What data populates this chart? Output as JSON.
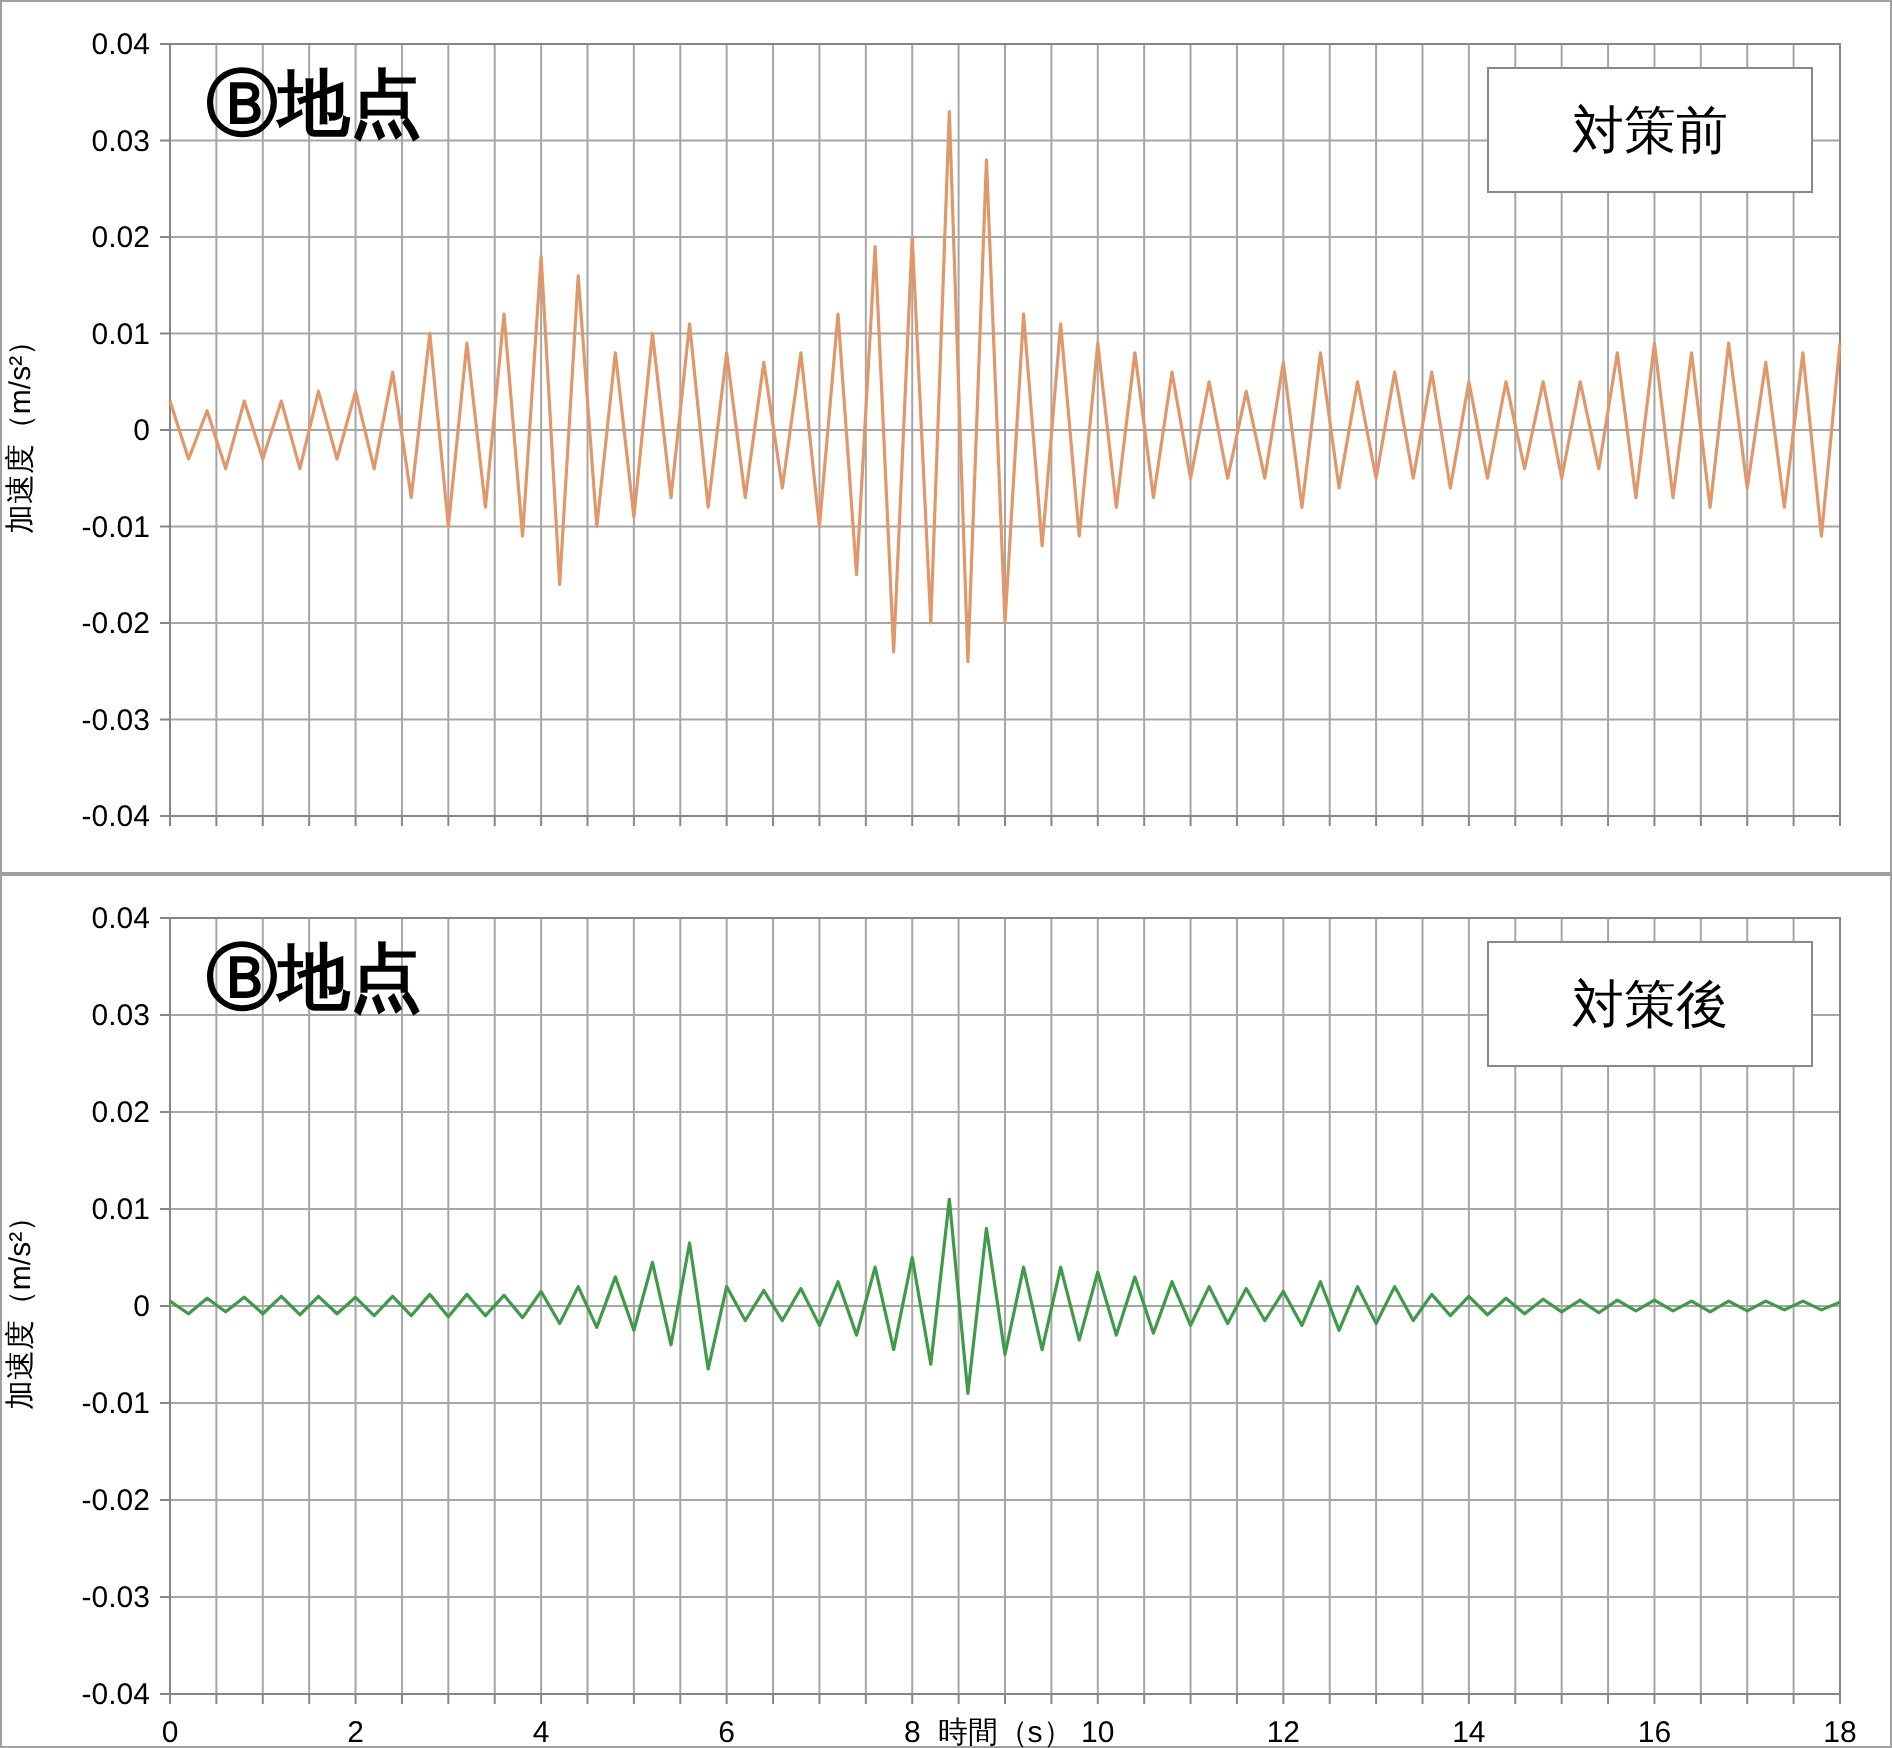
{
  "chart_data": [
    {
      "type": "line",
      "title": "Ⓑ地点",
      "ylabel": "加速度（m/s²）",
      "annotations": [
        "対策前"
      ],
      "tick_labels": "y",
      "grid": true,
      "xlim": [
        0,
        18
      ],
      "ylim": [
        -0.04,
        0.04
      ],
      "xticks": [
        {
          "value": 0,
          "label": null
        },
        {
          "value": 0.5,
          "label": null
        },
        {
          "value": 1,
          "label": null
        },
        {
          "value": 1.5,
          "label": null
        },
        {
          "value": 2,
          "label": null
        },
        {
          "value": 2.5,
          "label": null
        },
        {
          "value": 3,
          "label": null
        },
        {
          "value": 3.5,
          "label": null
        },
        {
          "value": 4,
          "label": null
        },
        {
          "value": 4.5,
          "label": null
        },
        {
          "value": 5,
          "label": null
        },
        {
          "value": 5.5,
          "label": null
        },
        {
          "value": 6,
          "label": null
        },
        {
          "value": 6.5,
          "label": null
        },
        {
          "value": 7,
          "label": null
        },
        {
          "value": 7.5,
          "label": null
        },
        {
          "value": 8,
          "label": null
        },
        {
          "value": 8.5,
          "label": null
        },
        {
          "value": 9,
          "label": null
        },
        {
          "value": 9.5,
          "label": null
        },
        {
          "value": 10,
          "label": null
        },
        {
          "value": 10.5,
          "label": null
        },
        {
          "value": 11,
          "label": null
        },
        {
          "value": 11.5,
          "label": null
        },
        {
          "value": 12,
          "label": null
        },
        {
          "value": 12.5,
          "label": null
        },
        {
          "value": 13,
          "label": null
        },
        {
          "value": 13.5,
          "label": null
        },
        {
          "value": 14,
          "label": null
        },
        {
          "value": 14.5,
          "label": null
        },
        {
          "value": 15,
          "label": null
        },
        {
          "value": 15.5,
          "label": null
        },
        {
          "value": 16,
          "label": null
        },
        {
          "value": 16.5,
          "label": null
        },
        {
          "value": 17,
          "label": null
        },
        {
          "value": 17.5,
          "label": null
        },
        {
          "value": 18,
          "label": null
        }
      ],
      "yticks": [
        -0.04,
        -0.03,
        -0.02,
        -0.01,
        0,
        0.01,
        0.02,
        0.03,
        0.04
      ],
      "x": [
        0,
        0.2,
        0.4,
        0.6,
        0.8,
        1,
        1.2,
        1.4,
        1.6,
        1.8,
        2,
        2.2,
        2.4,
        2.6,
        2.8,
        3,
        3.2,
        3.4,
        3.6,
        3.8,
        4,
        4.2,
        4.4,
        4.6,
        4.8,
        5,
        5.2,
        5.4,
        5.6,
        5.8,
        6,
        6.2,
        6.4,
        6.6,
        6.8,
        7,
        7.2,
        7.4,
        7.6,
        7.8,
        8,
        8.2,
        8.4,
        8.6,
        8.8,
        9,
        9.2,
        9.4,
        9.6,
        9.8,
        10,
        10.2,
        10.4,
        10.6,
        10.8,
        11,
        11.2,
        11.4,
        11.6,
        11.8,
        12,
        12.2,
        12.4,
        12.6,
        12.8,
        13,
        13.2,
        13.4,
        13.6,
        13.8,
        14,
        14.2,
        14.4,
        14.6,
        14.8,
        15,
        15.2,
        15.4,
        15.6,
        15.8,
        16,
        16.2,
        16.4,
        16.6,
        16.8,
        17,
        17.2,
        17.4,
        17.6,
        17.8,
        18
      ],
      "series": [
        {
          "color": "#e0986a",
          "values": [
            0.003,
            -0.003,
            0.002,
            -0.004,
            0.003,
            -0.003,
            0.003,
            -0.004,
            0.004,
            -0.003,
            0.004,
            -0.004,
            0.006,
            -0.007,
            0.01,
            -0.01,
            0.009,
            -0.008,
            0.012,
            -0.011,
            0.018,
            -0.016,
            0.016,
            -0.01,
            0.008,
            -0.009,
            0.01,
            -0.007,
            0.011,
            -0.008,
            0.008,
            -0.007,
            0.007,
            -0.006,
            0.008,
            -0.01,
            0.012,
            -0.015,
            0.019,
            -0.023,
            0.02,
            -0.02,
            0.033,
            -0.024,
            0.028,
            -0.02,
            0.012,
            -0.012,
            0.011,
            -0.011,
            0.009,
            -0.008,
            0.008,
            -0.007,
            0.006,
            -0.005,
            0.005,
            -0.005,
            0.004,
            -0.005,
            0.007,
            -0.008,
            0.008,
            -0.006,
            0.005,
            -0.005,
            0.006,
            -0.005,
            0.006,
            -0.006,
            0.005,
            -0.005,
            0.005,
            -0.004,
            0.005,
            -0.005,
            0.005,
            -0.004,
            0.008,
            -0.007,
            0.009,
            -0.007,
            0.008,
            -0.008,
            0.009,
            -0.006,
            0.007,
            -0.008,
            0.008,
            -0.011,
            0.009
          ]
        }
      ]
    },
    {
      "type": "line",
      "title": "Ⓑ地点",
      "ylabel": "加速度（m/s²）",
      "xlabel": "時間（s）",
      "annotations": [
        "対策後"
      ],
      "grid": true,
      "xlim": [
        0,
        18
      ],
      "ylim": [
        -0.04,
        0.04
      ],
      "xticks": [
        0,
        {
          "value": 0.5,
          "label": null
        },
        {
          "value": 1,
          "label": null
        },
        {
          "value": 1.5,
          "label": null
        },
        2,
        {
          "value": 2.5,
          "label": null
        },
        {
          "value": 3,
          "label": null
        },
        {
          "value": 3.5,
          "label": null
        },
        4,
        {
          "value": 4.5,
          "label": null
        },
        {
          "value": 5,
          "label": null
        },
        {
          "value": 5.5,
          "label": null
        },
        6,
        {
          "value": 6.5,
          "label": null
        },
        {
          "value": 7,
          "label": null
        },
        {
          "value": 7.5,
          "label": null
        },
        8,
        {
          "value": 8.5,
          "label": null
        },
        {
          "value": 9,
          "label": null
        },
        {
          "value": 9.5,
          "label": null
        },
        10,
        {
          "value": 10.5,
          "label": null
        },
        {
          "value": 11,
          "label": null
        },
        {
          "value": 11.5,
          "label": null
        },
        12,
        {
          "value": 12.5,
          "label": null
        },
        {
          "value": 13,
          "label": null
        },
        {
          "value": 13.5,
          "label": null
        },
        14,
        {
          "value": 14.5,
          "label": null
        },
        {
          "value": 15,
          "label": null
        },
        {
          "value": 15.5,
          "label": null
        },
        16,
        {
          "value": 16.5,
          "label": null
        },
        {
          "value": 17,
          "label": null
        },
        {
          "value": 17.5,
          "label": null
        },
        18
      ],
      "yticks": [
        -0.04,
        -0.03,
        -0.02,
        -0.01,
        0,
        0.01,
        0.02,
        0.03,
        0.04
      ],
      "x": [
        0,
        0.2,
        0.4,
        0.6,
        0.8,
        1,
        1.2,
        1.4,
        1.6,
        1.8,
        2,
        2.2,
        2.4,
        2.6,
        2.8,
        3,
        3.2,
        3.4,
        3.6,
        3.8,
        4,
        4.2,
        4.4,
        4.6,
        4.8,
        5,
        5.2,
        5.4,
        5.6,
        5.8,
        6,
        6.2,
        6.4,
        6.6,
        6.8,
        7,
        7.2,
        7.4,
        7.6,
        7.8,
        8,
        8.2,
        8.4,
        8.6,
        8.8,
        9,
        9.2,
        9.4,
        9.6,
        9.8,
        10,
        10.2,
        10.4,
        10.6,
        10.8,
        11,
        11.2,
        11.4,
        11.6,
        11.8,
        12,
        12.2,
        12.4,
        12.6,
        12.8,
        13,
        13.2,
        13.4,
        13.6,
        13.8,
        14,
        14.2,
        14.4,
        14.6,
        14.8,
        15,
        15.2,
        15.4,
        15.6,
        15.8,
        16,
        16.2,
        16.4,
        16.6,
        16.8,
        17,
        17.2,
        17.4,
        17.6,
        17.8,
        18
      ],
      "series": [
        {
          "color": "#3f9a4a",
          "values": [
            0.0005,
            -0.0008,
            0.0008,
            -0.0006,
            0.0009,
            -0.0008,
            0.001,
            -0.0009,
            0.001,
            -0.0008,
            0.0009,
            -0.001,
            0.001,
            -0.001,
            0.0012,
            -0.0011,
            0.0012,
            -0.001,
            0.0011,
            -0.0012,
            0.0015,
            -0.0018,
            0.002,
            -0.0022,
            0.003,
            -0.0025,
            0.0045,
            -0.004,
            0.0065,
            -0.0065,
            0.002,
            -0.0015,
            0.0016,
            -0.0015,
            0.0018,
            -0.002,
            0.0025,
            -0.003,
            0.004,
            -0.0045,
            0.005,
            -0.006,
            0.011,
            -0.009,
            0.008,
            -0.005,
            0.004,
            -0.0045,
            0.004,
            -0.0035,
            0.0035,
            -0.003,
            0.003,
            -0.0028,
            0.0025,
            -0.002,
            0.002,
            -0.0018,
            0.0018,
            -0.0015,
            0.0015,
            -0.002,
            0.0025,
            -0.0025,
            0.002,
            -0.0018,
            0.002,
            -0.0015,
            0.0012,
            -0.001,
            0.001,
            -0.0009,
            0.0008,
            -0.0008,
            0.0007,
            -0.0006,
            0.0006,
            -0.0007,
            0.0006,
            -0.0005,
            0.0006,
            -0.0005,
            0.0005,
            -0.0006,
            0.0005,
            -0.0005,
            0.0005,
            -0.0004,
            0.0005,
            -0.0004,
            0.0004
          ]
        }
      ]
    }
  ]
}
